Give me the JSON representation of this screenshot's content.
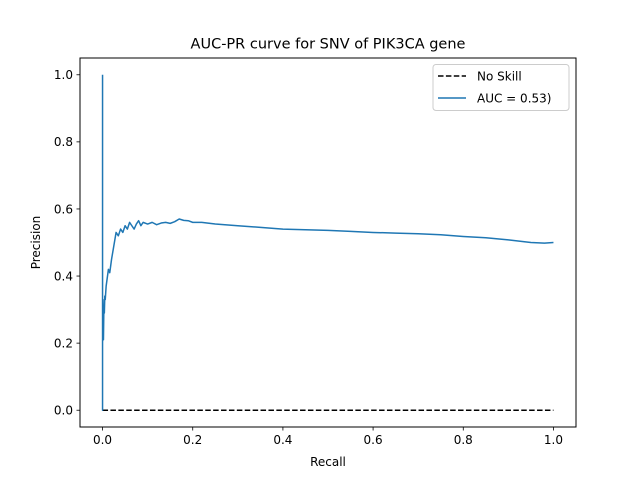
{
  "chart_data": {
    "type": "line",
    "title": "AUC-PR curve for SNV of PIK3CA gene",
    "xlabel": "Recall",
    "ylabel": "Precision",
    "xlim": [
      -0.05,
      1.05
    ],
    "ylim": [
      -0.05,
      1.05
    ],
    "xticks": [
      0.0,
      0.2,
      0.4,
      0.6,
      0.8,
      1.0
    ],
    "yticks": [
      0.0,
      0.2,
      0.4,
      0.6,
      0.8,
      1.0
    ],
    "tick_labels_x": [
      "0.0",
      "0.2",
      "0.4",
      "0.6",
      "0.8",
      "1.0"
    ],
    "tick_labels_y": [
      "0.0",
      "0.2",
      "0.4",
      "0.6",
      "0.8",
      "1.0"
    ],
    "grid": false,
    "legend_position": "upper-right",
    "series": [
      {
        "name": "No Skill",
        "color": "#000000",
        "style": "dashed",
        "x": [
          0.0,
          1.0
        ],
        "y": [
          0.0,
          0.0
        ]
      },
      {
        "name": "AUC = 0.53)",
        "color": "#1f77b4",
        "style": "solid",
        "x": [
          0.0,
          0.0,
          0.0,
          0.001,
          0.002,
          0.003,
          0.004,
          0.005,
          0.006,
          0.008,
          0.01,
          0.013,
          0.016,
          0.02,
          0.025,
          0.03,
          0.035,
          0.04,
          0.045,
          0.05,
          0.055,
          0.06,
          0.065,
          0.07,
          0.075,
          0.08,
          0.085,
          0.09,
          0.1,
          0.11,
          0.12,
          0.13,
          0.14,
          0.15,
          0.16,
          0.17,
          0.18,
          0.19,
          0.2,
          0.22,
          0.25,
          0.3,
          0.35,
          0.4,
          0.45,
          0.5,
          0.55,
          0.6,
          0.65,
          0.7,
          0.75,
          0.8,
          0.85,
          0.9,
          0.95,
          0.98,
          1.0
        ],
        "y": [
          1.0,
          0.0,
          0.2,
          0.33,
          0.21,
          0.31,
          0.29,
          0.34,
          0.33,
          0.37,
          0.39,
          0.42,
          0.41,
          0.45,
          0.49,
          0.53,
          0.52,
          0.54,
          0.53,
          0.55,
          0.54,
          0.56,
          0.55,
          0.54,
          0.555,
          0.565,
          0.55,
          0.56,
          0.555,
          0.56,
          0.553,
          0.558,
          0.56,
          0.557,
          0.562,
          0.57,
          0.566,
          0.565,
          0.56,
          0.56,
          0.555,
          0.55,
          0.545,
          0.54,
          0.538,
          0.536,
          0.533,
          0.53,
          0.528,
          0.526,
          0.523,
          0.518,
          0.514,
          0.508,
          0.5,
          0.498,
          0.5
        ]
      }
    ]
  }
}
